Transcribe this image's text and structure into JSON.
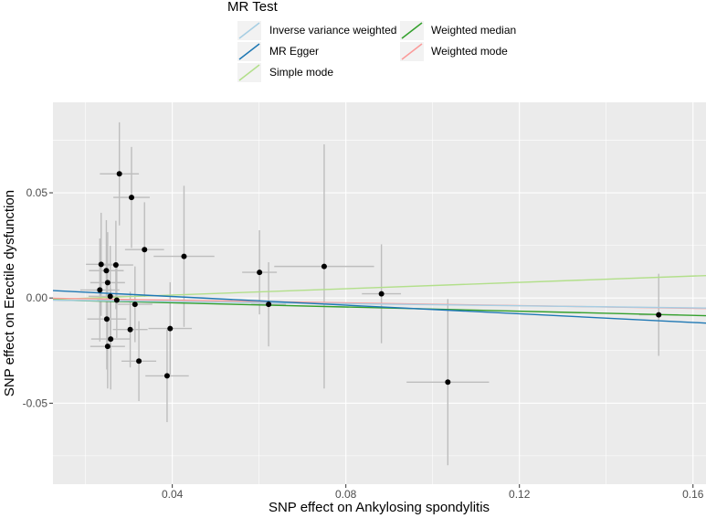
{
  "chart_data": {
    "type": "scatter",
    "xlabel": "SNP effect on Ankylosing spondylitis",
    "ylabel": "SNP effect on Erectile dysfunction",
    "xlim": [
      0.0125,
      0.163
    ],
    "ylim": [
      -0.0885,
      0.093
    ],
    "x_ticks": [
      0.04,
      0.08,
      0.12,
      0.16
    ],
    "x_tick_labels": [
      "0.04",
      "0.08",
      "0.12",
      "0.16"
    ],
    "y_ticks": [
      -0.05,
      0.0,
      0.05
    ],
    "y_tick_labels": [
      "-0.05",
      "0.00",
      "0.05"
    ],
    "points": [
      {
        "x": 0.0278,
        "y": 0.059,
        "xerr": 0.0045,
        "yerr": 0.0245
      },
      {
        "x": 0.0306,
        "y": 0.0478,
        "xerr": 0.0042,
        "yerr": 0.024
      },
      {
        "x": 0.0336,
        "y": 0.023,
        "xerr": 0.0045,
        "yerr": 0.0225
      },
      {
        "x": 0.0427,
        "y": 0.0198,
        "xerr": 0.007,
        "yerr": 0.0335
      },
      {
        "x": 0.0236,
        "y": 0.016,
        "xerr": 0.0035,
        "yerr": 0.0245
      },
      {
        "x": 0.027,
        "y": 0.0157,
        "xerr": 0.004,
        "yerr": 0.021
      },
      {
        "x": 0.0248,
        "y": 0.013,
        "xerr": 0.004,
        "yerr": 0.024
      },
      {
        "x": 0.0251,
        "y": 0.0073,
        "xerr": 0.004,
        "yerr": 0.024
      },
      {
        "x": 0.0233,
        "y": 0.0038,
        "xerr": 0.0045,
        "yerr": 0.0245
      },
      {
        "x": 0.0257,
        "y": 0.0008,
        "xerr": 0.005,
        "yerr": 0.024
      },
      {
        "x": 0.0272,
        "y": -0.001,
        "xerr": 0.0045,
        "yerr": 0.018
      },
      {
        "x": 0.0314,
        "y": -0.003,
        "xerr": 0.004,
        "yerr": 0.018
      },
      {
        "x": 0.0249,
        "y": -0.01,
        "xerr": 0.0045,
        "yerr": 0.024
      },
      {
        "x": 0.0303,
        "y": -0.015,
        "xerr": 0.004,
        "yerr": 0.018
      },
      {
        "x": 0.0395,
        "y": -0.0145,
        "xerr": 0.005,
        "yerr": 0.022
      },
      {
        "x": 0.0258,
        "y": -0.0195,
        "xerr": 0.0045,
        "yerr": 0.024
      },
      {
        "x": 0.0251,
        "y": -0.023,
        "xerr": 0.004,
        "yerr": 0.02
      },
      {
        "x": 0.0323,
        "y": -0.03,
        "xerr": 0.004,
        "yerr": 0.019
      },
      {
        "x": 0.0388,
        "y": -0.037,
        "xerr": 0.005,
        "yerr": 0.022
      },
      {
        "x": 0.0601,
        "y": 0.0122,
        "xerr": 0.004,
        "yerr": 0.02
      },
      {
        "x": 0.0622,
        "y": -0.003,
        "xerr": 0.004,
        "yerr": 0.02
      },
      {
        "x": 0.075,
        "y": 0.015,
        "xerr": 0.0115,
        "yerr": 0.058
      },
      {
        "x": 0.0882,
        "y": 0.002,
        "xerr": 0.0045,
        "yerr": 0.0235
      },
      {
        "x": 0.1035,
        "y": -0.04,
        "xerr": 0.0095,
        "yerr": 0.0395
      },
      {
        "x": 0.1521,
        "y": -0.008,
        "xerr": 0.0045,
        "yerr": 0.0195
      }
    ],
    "series": [
      {
        "name": "Inverse variance weighted",
        "color": "#A6CEE3",
        "intercept": -0.0007,
        "slope": -0.025
      },
      {
        "name": "MR Egger",
        "color": "#1F78B4",
        "intercept": 0.0048,
        "slope": -0.1026
      },
      {
        "name": "Simple mode",
        "color": "#B2DF8A",
        "intercept": -0.0016,
        "slope": 0.0752
      },
      {
        "name": "Weighted median",
        "color": "#33A02C",
        "intercept": -0.0003,
        "slope": -0.0498
      },
      {
        "name": "Weighted mode",
        "color": "#FB9A99",
        "intercept": 0.0003,
        "slope": -0.0326
      }
    ],
    "legend": {
      "title": "MR Test",
      "position": "top",
      "entries": [
        "Inverse variance weighted",
        "MR Egger",
        "Simple mode",
        "Weighted median",
        "Weighted mode"
      ]
    }
  }
}
